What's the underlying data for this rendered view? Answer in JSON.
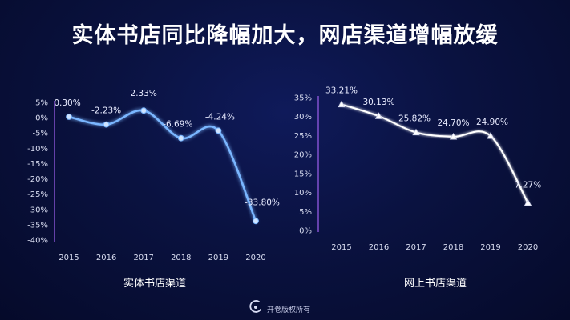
{
  "title": "实体书店同比降幅加大，网店渠道增幅放缓",
  "footer": {
    "text": "开卷版权所有",
    "logo": "kaijuan-logo-icon"
  },
  "colors": {
    "background": "#0a1240",
    "left_line": "#7ab6ff",
    "right_line": "#ffffff",
    "axis": "#8a55d8"
  },
  "chart_data": [
    {
      "type": "line",
      "title": "",
      "caption": "实体书店渠道",
      "categories": [
        "2015",
        "2016",
        "2017",
        "2018",
        "2019",
        "2020"
      ],
      "values": [
        0.3,
        -2.23,
        2.33,
        -6.69,
        -4.24,
        -33.8
      ],
      "data_labels": [
        "0.30%",
        "-2.23%",
        "2.33%",
        "-6.69%",
        "-4.24%",
        "-33.80%"
      ],
      "ylim": [
        -40,
        5
      ],
      "yticks": [
        5,
        0,
        -5,
        -10,
        -15,
        -20,
        -25,
        -30,
        -35,
        -40
      ],
      "ytick_labels": [
        "5%",
        "0%",
        "-5%",
        "-10%",
        "-15%",
        "-20%",
        "-25%",
        "-30%",
        "-35%",
        "-40%"
      ],
      "grid": false,
      "smooth": true
    },
    {
      "type": "line",
      "title": "",
      "caption": "网上书店渠道",
      "categories": [
        "2015",
        "2016",
        "2017",
        "2018",
        "2019",
        "2020"
      ],
      "values": [
        33.21,
        30.13,
        25.82,
        24.7,
        24.9,
        7.27
      ],
      "data_labels": [
        "33.21%",
        "30.13%",
        "25.82%",
        "24.70%",
        "24.90%",
        "7.27%"
      ],
      "ylim": [
        0,
        35
      ],
      "yticks": [
        35,
        30,
        25,
        20,
        15,
        10,
        5,
        0
      ],
      "ytick_labels": [
        "35%",
        "30%",
        "25%",
        "20%",
        "15%",
        "10%",
        "5%",
        "0%"
      ],
      "grid": false,
      "smooth": true
    }
  ]
}
